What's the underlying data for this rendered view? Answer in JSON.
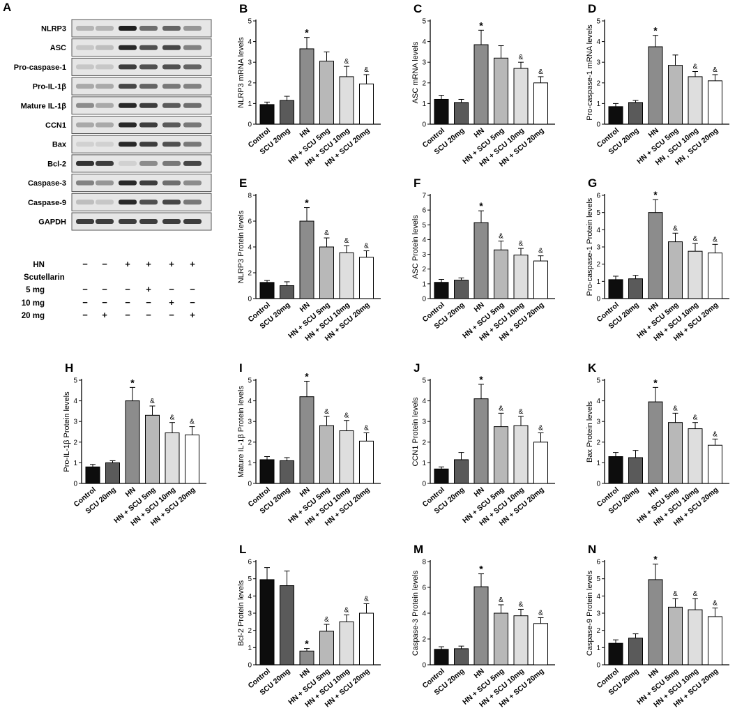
{
  "colors": {
    "bars": [
      "#0d0d0d",
      "#5a5a5a",
      "#8c8c8c",
      "#b8b8b8",
      "#dedede",
      "#ffffff"
    ],
    "blot_band": "#1e1e1e",
    "blot_background": "#e6e6e6"
  },
  "blot": {
    "panel_letter": "A",
    "labels": [
      "NLRP3",
      "ASC",
      "Pro-caspase-1",
      "Pro-IL-1β",
      "Mature IL-1β",
      "CCN1",
      "Bax",
      "Bcl-2",
      "Caspase-3",
      "Caspase-9",
      "GAPDH"
    ],
    "band_intensities": [
      [
        0.25,
        0.25,
        1.0,
        0.6,
        0.65,
        0.4
      ],
      [
        0.15,
        0.2,
        0.95,
        0.75,
        0.8,
        0.5
      ],
      [
        0.15,
        0.15,
        0.85,
        0.75,
        0.75,
        0.65
      ],
      [
        0.3,
        0.3,
        0.8,
        0.65,
        0.55,
        0.5
      ],
      [
        0.45,
        0.3,
        0.95,
        0.85,
        0.7,
        0.6
      ],
      [
        0.3,
        0.3,
        0.95,
        0.85,
        0.7,
        0.55
      ],
      [
        0.1,
        0.1,
        0.95,
        0.85,
        0.75,
        0.55
      ],
      [
        0.9,
        0.85,
        0.1,
        0.45,
        0.55,
        0.8
      ],
      [
        0.5,
        0.4,
        0.95,
        0.85,
        0.6,
        0.45
      ],
      [
        0.2,
        0.15,
        0.95,
        0.75,
        0.8,
        0.55
      ],
      [
        0.85,
        0.85,
        0.85,
        0.85,
        0.85,
        0.85
      ]
    ],
    "treatment_rows": [
      {
        "label": "HN",
        "marks": [
          "−",
          "−",
          "+",
          "+",
          "+",
          "+"
        ]
      },
      {
        "label": "Scutellarin",
        "marks": [
          "",
          "",
          "",
          "",
          "",
          ""
        ]
      },
      {
        "label": "5  mg",
        "marks": [
          "−",
          "−",
          "−",
          "+",
          "−",
          "−"
        ]
      },
      {
        "label": "10  mg",
        "marks": [
          "−",
          "−",
          "−",
          "−",
          "+",
          "−"
        ]
      },
      {
        "label": "20  mg",
        "marks": [
          "−",
          "+",
          "−",
          "−",
          "−",
          "+"
        ]
      }
    ]
  },
  "chart_data": [
    {
      "panel": "B",
      "type": "bar",
      "ylabel": "NLRP3 mRNA levels",
      "ylim": [
        0,
        5
      ],
      "ticks": [
        0,
        1,
        2,
        3,
        4,
        5
      ],
      "categories": [
        "Control",
        "SCU 20mg",
        "HN",
        "HN + SCU 5mg",
        "HN + SCU 10mg",
        "HN + SCU 20mg"
      ],
      "values": [
        0.95,
        1.15,
        3.65,
        3.05,
        2.3,
        1.95
      ],
      "errors": [
        0.12,
        0.2,
        0.55,
        0.45,
        0.5,
        0.45
      ],
      "annotations": [
        "",
        "",
        "*",
        "",
        "&",
        "&"
      ]
    },
    {
      "panel": "C",
      "type": "bar",
      "ylabel": "ASC mRNA levels",
      "ylim": [
        0,
        5
      ],
      "ticks": [
        0,
        1,
        2,
        3,
        4,
        5
      ],
      "categories": [
        "Control",
        "SCU 20mg",
        "HN",
        "HN + SCU 5mg",
        "HN + SCU 10mg",
        "HN + SCU 20mg"
      ],
      "values": [
        1.2,
        1.05,
        3.85,
        3.2,
        2.7,
        2.0
      ],
      "errors": [
        0.2,
        0.15,
        0.7,
        0.6,
        0.3,
        0.3
      ],
      "annotations": [
        "",
        "",
        "*",
        "",
        "&",
        "&"
      ]
    },
    {
      "panel": "D",
      "type": "bar",
      "ylabel": "Pro-caspase-1 mRNA levels",
      "ylim": [
        0,
        5
      ],
      "ticks": [
        0,
        1,
        2,
        3,
        4,
        5
      ],
      "categories": [
        "Control",
        "SCU 20mg",
        "HN",
        "HN + SCU 5mg",
        "HN , SCU 10mg",
        "HN , SCU 20mg"
      ],
      "values": [
        0.85,
        1.05,
        3.75,
        2.85,
        2.3,
        2.1
      ],
      "errors": [
        0.15,
        0.1,
        0.55,
        0.5,
        0.25,
        0.3
      ],
      "annotations": [
        "",
        "",
        "*",
        "",
        "&",
        "&"
      ]
    },
    {
      "panel": "E",
      "type": "bar",
      "ylabel": "NLRP3 Protein levels",
      "ylim": [
        0,
        8
      ],
      "ticks": [
        0,
        2,
        4,
        6,
        8
      ],
      "categories": [
        "Control",
        "SCU 20mg",
        "HN",
        "HN + SCU 5mg",
        "HN + SCU 10mg",
        "HN + SCU 20mg"
      ],
      "values": [
        1.25,
        1.0,
        6.0,
        4.0,
        3.55,
        3.2
      ],
      "errors": [
        0.15,
        0.3,
        1.05,
        0.7,
        0.55,
        0.5
      ],
      "annotations": [
        "",
        "",
        "*",
        "&",
        "&",
        "&"
      ]
    },
    {
      "panel": "F",
      "type": "bar",
      "ylabel": "ASC Protein levels",
      "ylim": [
        0,
        7
      ],
      "ticks": [
        0,
        1,
        2,
        3,
        4,
        5,
        6,
        7
      ],
      "categories": [
        "Control",
        "SCU 20mg",
        "HN",
        "HN + SCU 5mg",
        "HN + SCU 10mg",
        "HN + SCU 20mg"
      ],
      "values": [
        1.1,
        1.25,
        5.15,
        3.3,
        2.95,
        2.55
      ],
      "errors": [
        0.2,
        0.15,
        0.8,
        0.6,
        0.45,
        0.35
      ],
      "annotations": [
        "",
        "",
        "*",
        "&",
        "&",
        "&"
      ]
    },
    {
      "panel": "G",
      "type": "bar",
      "ylabel": "Pro-caspase-1 Protein levels",
      "ylim": [
        0,
        6
      ],
      "ticks": [
        0,
        1,
        2,
        3,
        4,
        5,
        6
      ],
      "categories": [
        "Control",
        "SCU 20mg",
        "HN",
        "HN + SCU 5mg",
        "HN + SCU 10mg",
        "HN + SCU 20mg"
      ],
      "values": [
        1.1,
        1.15,
        5.0,
        3.3,
        2.75,
        2.65
      ],
      "errors": [
        0.2,
        0.2,
        0.75,
        0.5,
        0.45,
        0.5
      ],
      "annotations": [
        "",
        "",
        "*",
        "&",
        "&",
        "&"
      ]
    },
    {
      "panel": "H",
      "type": "bar",
      "ylabel": "Pro-IL-1β Protein levels",
      "ylim": [
        0,
        5
      ],
      "ticks": [
        0,
        1,
        2,
        3,
        4,
        5
      ],
      "categories": [
        "Control",
        "SCU 20mg",
        "HN",
        "HN + SCU 5mg",
        "HN + SCU 10mg",
        "HN + SCU 20mg"
      ],
      "values": [
        0.8,
        1.0,
        4.0,
        3.3,
        2.45,
        2.35
      ],
      "errors": [
        0.12,
        0.1,
        0.65,
        0.45,
        0.5,
        0.4
      ],
      "annotations": [
        "",
        "",
        "*",
        "&",
        "&",
        "&"
      ]
    },
    {
      "panel": "I",
      "type": "bar",
      "ylabel": "Mature IL-1β Protein levels",
      "ylim": [
        0,
        5
      ],
      "ticks": [
        0,
        1,
        2,
        3,
        4,
        5
      ],
      "categories": [
        "Control",
        "SCU 20mg",
        "HN",
        "HN + SCU 5mg",
        "HN + SCU 10mg",
        "HN + SCU 20mg"
      ],
      "values": [
        1.15,
        1.1,
        4.2,
        2.8,
        2.55,
        2.05
      ],
      "errors": [
        0.15,
        0.15,
        0.75,
        0.45,
        0.5,
        0.4
      ],
      "annotations": [
        "",
        "",
        "*",
        "&",
        "&",
        "&"
      ]
    },
    {
      "panel": "J",
      "type": "bar",
      "ylabel": "CCN1 Protein levels",
      "ylim": [
        0,
        5
      ],
      "ticks": [
        0,
        1,
        2,
        3,
        4,
        5
      ],
      "categories": [
        "Control",
        "SCU 20mg",
        "HN",
        "HN + SCU 5mg",
        "HN + SCU 10mg",
        "HN + SCU 20mg"
      ],
      "values": [
        0.7,
        1.15,
        4.1,
        2.75,
        2.8,
        2.0
      ],
      "errors": [
        0.1,
        0.35,
        0.7,
        0.65,
        0.45,
        0.45
      ],
      "annotations": [
        "",
        "",
        "*",
        "&",
        "&",
        "&"
      ]
    },
    {
      "panel": "K",
      "type": "bar",
      "ylabel": "Bax Protein levels",
      "ylim": [
        0,
        5
      ],
      "ticks": [
        0,
        1,
        2,
        3,
        4,
        5
      ],
      "categories": [
        "Control",
        "SCU 20mg",
        "HN",
        "HN + SCU 5mg",
        "HN + SCU 10mg",
        "HN + SCU 20mg"
      ],
      "values": [
        1.3,
        1.25,
        3.95,
        2.95,
        2.65,
        1.85
      ],
      "errors": [
        0.2,
        0.35,
        0.7,
        0.45,
        0.3,
        0.3
      ],
      "annotations": [
        "",
        "",
        "*",
        "&",
        "&",
        "&"
      ]
    },
    {
      "panel": "L",
      "type": "bar",
      "ylabel": "Bcl-2 Protein levels",
      "ylim": [
        0,
        6
      ],
      "ticks": [
        0,
        1,
        2,
        3,
        4,
        5,
        6
      ],
      "categories": [
        "Control",
        "SCU 20mg",
        "HN",
        "HN + SCU 5mg",
        "HN + SCU 10mg",
        "HN + SCU 20mg"
      ],
      "values": [
        4.95,
        4.6,
        0.8,
        1.95,
        2.5,
        3.0
      ],
      "errors": [
        0.7,
        0.85,
        0.15,
        0.4,
        0.4,
        0.55
      ],
      "annotations": [
        "",
        "",
        "*",
        "&",
        "&",
        "&"
      ]
    },
    {
      "panel": "M",
      "type": "bar",
      "ylabel": "Caspase-3 Protein levels",
      "ylim": [
        0,
        8
      ],
      "ticks": [
        0,
        2,
        4,
        6,
        8
      ],
      "categories": [
        "Control",
        "SCU 20mg",
        "HN",
        "HN + SCU 5mg",
        "HN + SCU 10mg",
        "HN + SCU 20mg"
      ],
      "values": [
        1.2,
        1.25,
        6.05,
        4.0,
        3.8,
        3.2
      ],
      "errors": [
        0.2,
        0.2,
        1.0,
        0.65,
        0.5,
        0.45
      ],
      "annotations": [
        "",
        "",
        "*",
        "&",
        "&",
        "&"
      ]
    },
    {
      "panel": "N",
      "type": "bar",
      "ylabel": "Caspase-9 Protein levels",
      "ylim": [
        0,
        6
      ],
      "ticks": [
        0,
        1,
        2,
        3,
        4,
        5,
        6
      ],
      "categories": [
        "Control",
        "SCU 20mg",
        "HN",
        "HN + SCU 5mg",
        "HN + SCU 10mg",
        "HN + SCU 20mg"
      ],
      "values": [
        1.25,
        1.55,
        4.95,
        3.35,
        3.2,
        2.8
      ],
      "errors": [
        0.2,
        0.25,
        0.9,
        0.5,
        0.65,
        0.5
      ],
      "annotations": [
        "",
        "",
        "*",
        "&",
        "&",
        "&"
      ]
    }
  ]
}
